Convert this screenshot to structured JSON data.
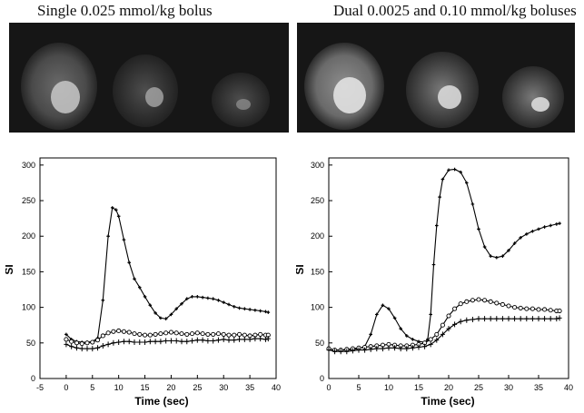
{
  "panels": {
    "left_title": "Single 0.025 mmol/kg bolus",
    "right_title": "Dual 0.0025 and 0.10 mmol/kg boluses"
  },
  "colors": {
    "line": "#000000",
    "background": "#ffffff",
    "mri_background": "#161616"
  },
  "chart_data": [
    {
      "type": "line",
      "title": "",
      "xlabel": "Time (sec)",
      "ylabel": "SI",
      "xlim": [
        -5,
        40
      ],
      "ylim": [
        0,
        310
      ],
      "xticks": [
        -5,
        0,
        5,
        10,
        15,
        20,
        25,
        30,
        35,
        40
      ],
      "yticks": [
        0,
        50,
        100,
        150,
        200,
        250,
        300
      ],
      "grid": false,
      "series": [
        {
          "marker": "plus",
          "x": [
            0,
            1,
            2,
            3,
            4,
            5,
            6,
            7,
            8,
            8.8,
            9.5,
            10,
            11,
            12,
            13,
            14,
            15,
            16,
            17,
            18,
            19,
            20,
            21,
            22,
            23,
            24,
            25,
            26,
            27,
            28,
            29,
            30,
            31,
            32,
            33,
            34,
            35,
            36,
            37,
            38,
            38.5
          ],
          "y": [
            62,
            55,
            52,
            51,
            51,
            52,
            57,
            110,
            200,
            240,
            237,
            228,
            195,
            163,
            140,
            128,
            115,
            103,
            92,
            85,
            84,
            90,
            98,
            105,
            112,
            115,
            115,
            114,
            113,
            112,
            110,
            107,
            104,
            101,
            99,
            98,
            97,
            96,
            95,
            94,
            93
          ]
        },
        {
          "marker": "circle",
          "x": [
            0,
            1,
            2,
            3,
            4,
            5,
            6,
            7,
            8,
            9,
            10,
            11,
            12,
            13,
            14,
            15,
            16,
            17,
            18,
            19,
            20,
            21,
            22,
            23,
            24,
            25,
            26,
            27,
            28,
            29,
            30,
            31,
            32,
            33,
            34,
            35,
            36,
            37,
            38,
            38.5
          ],
          "y": [
            55,
            52,
            50,
            49,
            50,
            51,
            54,
            60,
            64,
            66,
            67,
            66,
            65,
            63,
            62,
            61,
            61,
            62,
            63,
            64,
            65,
            64,
            63,
            62,
            63,
            64,
            63,
            62,
            62,
            63,
            62,
            61,
            61,
            62,
            61,
            60,
            61,
            62,
            61,
            61
          ]
        },
        {
          "marker": "cross",
          "x": [
            0,
            1,
            2,
            3,
            4,
            5,
            6,
            7,
            8,
            9,
            10,
            11,
            12,
            13,
            14,
            15,
            16,
            17,
            18,
            19,
            20,
            21,
            22,
            23,
            24,
            25,
            26,
            27,
            28,
            29,
            30,
            31,
            32,
            33,
            34,
            35,
            36,
            37,
            38,
            38.5
          ],
          "y": [
            48,
            45,
            43,
            42,
            42,
            42,
            43,
            46,
            48,
            50,
            51,
            52,
            52,
            51,
            51,
            51,
            52,
            52,
            52,
            53,
            53,
            53,
            52,
            52,
            53,
            54,
            54,
            53,
            53,
            54,
            55,
            54,
            54,
            55,
            55,
            55,
            56,
            56,
            55,
            56
          ]
        }
      ]
    },
    {
      "type": "line",
      "title": "",
      "xlabel": "Time (sec)",
      "ylabel": "SI",
      "xlim": [
        0,
        40
      ],
      "ylim": [
        0,
        310
      ],
      "xticks": [
        0,
        5,
        10,
        15,
        20,
        25,
        30,
        35,
        40
      ],
      "yticks": [
        0,
        50,
        100,
        150,
        200,
        250,
        300
      ],
      "grid": false,
      "series": [
        {
          "marker": "plus",
          "x": [
            0,
            1,
            2,
            3,
            4,
            5,
            6,
            7,
            8,
            9,
            10,
            11,
            12,
            13,
            14,
            15,
            16,
            16.5,
            17,
            17.5,
            18,
            18.5,
            19,
            20,
            21,
            22,
            23,
            24,
            25,
            26,
            27,
            28,
            29,
            30,
            31,
            32,
            33,
            34,
            35,
            36,
            37,
            38,
            38.5
          ],
          "y": [
            42,
            40,
            40,
            40,
            41,
            42,
            45,
            62,
            90,
            103,
            98,
            85,
            70,
            60,
            55,
            52,
            51,
            55,
            90,
            160,
            215,
            255,
            280,
            293,
            294,
            290,
            275,
            245,
            210,
            185,
            172,
            170,
            172,
            180,
            190,
            198,
            203,
            207,
            210,
            213,
            215,
            217,
            218
          ]
        },
        {
          "marker": "circle",
          "x": [
            0,
            1,
            2,
            3,
            4,
            5,
            6,
            7,
            8,
            9,
            10,
            11,
            12,
            13,
            14,
            15,
            16,
            17,
            18,
            19,
            20,
            21,
            22,
            23,
            24,
            25,
            26,
            27,
            28,
            29,
            30,
            31,
            32,
            33,
            34,
            35,
            36,
            37,
            38,
            38.5
          ],
          "y": [
            42,
            40,
            40,
            41,
            42,
            43,
            44,
            45,
            46,
            47,
            48,
            47,
            46,
            46,
            47,
            48,
            50,
            55,
            62,
            75,
            88,
            98,
            105,
            108,
            110,
            111,
            110,
            108,
            106,
            104,
            102,
            100,
            99,
            98,
            98,
            97,
            97,
            96,
            95,
            95
          ]
        },
        {
          "marker": "cross",
          "x": [
            0,
            1,
            2,
            3,
            4,
            5,
            6,
            7,
            8,
            9,
            10,
            11,
            12,
            13,
            14,
            15,
            16,
            17,
            18,
            19,
            20,
            21,
            22,
            23,
            24,
            25,
            26,
            27,
            28,
            29,
            30,
            31,
            32,
            33,
            34,
            35,
            36,
            37,
            38,
            38.5
          ],
          "y": [
            40,
            38,
            38,
            38,
            39,
            40,
            40,
            41,
            42,
            42,
            43,
            43,
            42,
            42,
            43,
            44,
            45,
            48,
            54,
            62,
            70,
            76,
            80,
            82,
            83,
            84,
            84,
            84,
            84,
            84,
            84,
            84,
            84,
            84,
            84,
            84,
            84,
            84,
            84,
            85
          ]
        }
      ]
    }
  ]
}
